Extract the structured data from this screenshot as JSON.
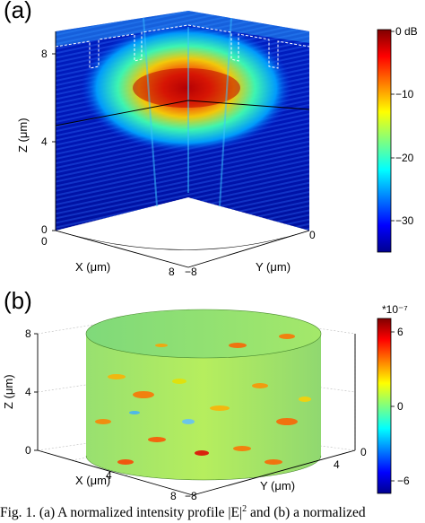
{
  "figure": {
    "panel_a": {
      "label": "(a)",
      "z_axis_label": "Z (μm)",
      "x_axis_label": "X (μm)",
      "y_axis_label": "Y (μm)",
      "z_ticks": [
        "8",
        "4",
        "0"
      ],
      "x_ticks": [
        "0",
        "8"
      ],
      "y_ticks": [
        "0",
        "−8"
      ],
      "colorbar": {
        "ticks": [
          "0 dB",
          "−10",
          "−20",
          "−30"
        ],
        "range": [
          -35,
          0
        ],
        "colormap": "jet"
      }
    },
    "panel_b": {
      "label": "(b)",
      "z_axis_label": "Z (μm)",
      "x_axis_label": "X (μm)",
      "y_axis_label": "Y (μm)",
      "z_ticks": [
        "8",
        "4",
        "0"
      ],
      "x_ticks": [
        "4",
        "8"
      ],
      "y_ticks": [
        "4",
        "0",
        "−8"
      ],
      "colorbar": {
        "exponent": "*10⁻⁷",
        "ticks": [
          "6",
          "0",
          "−6"
        ],
        "range": [
          -7,
          7
        ],
        "colormap": "jet"
      }
    },
    "caption": {
      "prefix": "Fig. 1. (a) A normalized intensity profile |E|",
      "sup": "2",
      "suffix": " and (b) a normalized"
    }
  }
}
